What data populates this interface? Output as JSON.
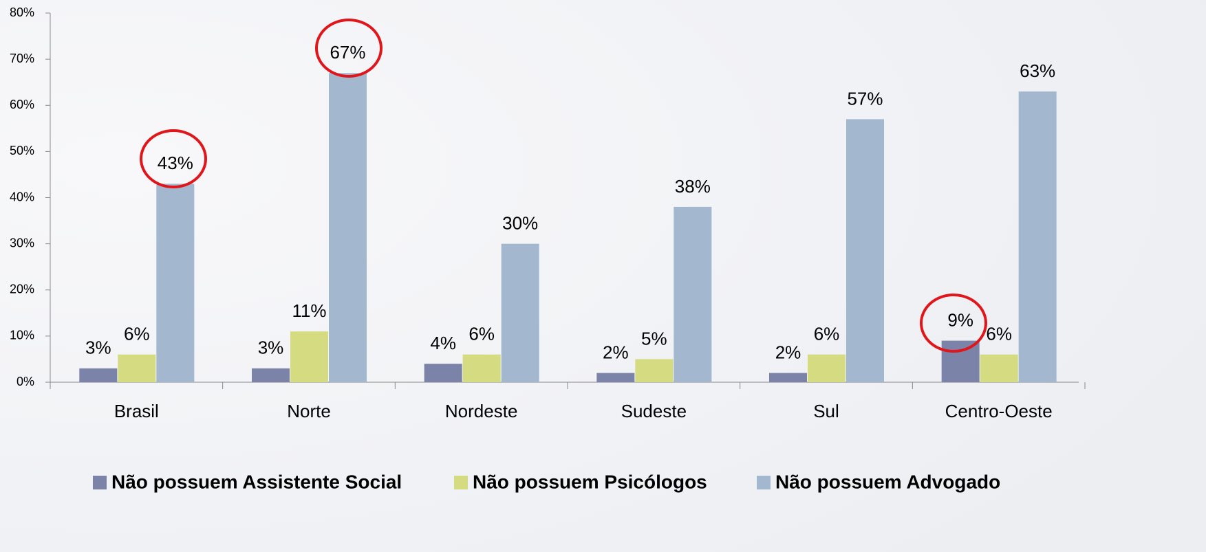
{
  "chart_data": {
    "type": "bar",
    "categories": [
      "Brasil",
      "Norte",
      "Nordeste",
      "Sudeste",
      "Sul",
      "Centro-Oeste"
    ],
    "series": [
      {
        "name": "Não possuem Assistente Social",
        "color": "#7b83a8",
        "values": [
          3,
          3,
          4,
          2,
          2,
          9
        ],
        "value_labels": [
          "3%",
          "3%",
          "4%",
          "2%",
          "2%",
          "9%"
        ]
      },
      {
        "name": "Não possuem Psicólogos",
        "color": "#d4db80",
        "values": [
          6,
          11,
          6,
          5,
          6,
          6
        ],
        "value_labels": [
          "6%",
          "11%",
          "6%",
          "5%",
          "6%",
          "6%"
        ]
      },
      {
        "name": "Não possuem Advogado",
        "color": "#a3b8cf",
        "values": [
          43,
          67,
          30,
          38,
          57,
          63
        ],
        "value_labels": [
          "43%",
          "67%",
          "30%",
          "38%",
          "57%",
          "63%"
        ]
      }
    ],
    "ylim": [
      0,
      80
    ],
    "yticks": [
      {
        "value": 0,
        "label": "0%"
      },
      {
        "value": 10,
        "label": "10%"
      },
      {
        "value": 20,
        "label": "20%"
      },
      {
        "value": 30,
        "label": "30%"
      },
      {
        "value": 40,
        "label": "40%"
      },
      {
        "value": 50,
        "label": "50%"
      },
      {
        "value": 60,
        "label": "60%"
      },
      {
        "value": 70,
        "label": "70%"
      },
      {
        "value": 80,
        "label": "80%"
      }
    ],
    "legend": "bottom"
  }
}
